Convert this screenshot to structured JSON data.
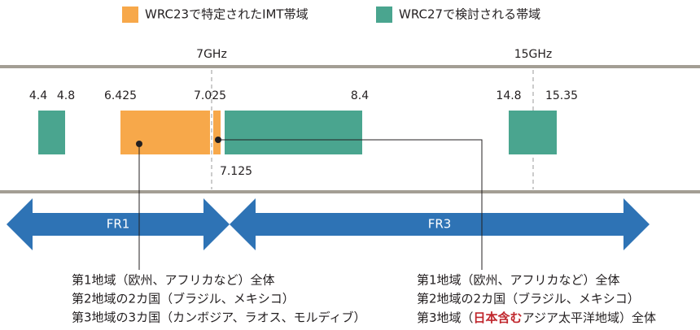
{
  "legend": [
    {
      "label": "WRC23で特定されたIMT帯域",
      "color": "#f7a84a"
    },
    {
      "label": "WRC27で検討される帯域",
      "color": "#4aa58f"
    }
  ],
  "markers": [
    "7GHz",
    "15GHz"
  ],
  "band_labels": [
    "4.4",
    "4.8",
    "6.425",
    "7.025",
    "8.4",
    "14.8",
    "15.35",
    "7.125"
  ],
  "ranges": [
    "FR1",
    "FR3"
  ],
  "left_note": [
    "第1地域（欧州、アフリカなど）全体",
    "第2地域の2カ国（ブラジル、メキシコ）",
    "第3地域の3カ国（カンボジア、ラオス、モルディブ）"
  ],
  "right_note": {
    "lines": [
      "第1地域（欧州、アフリカなど）全体",
      "第2地域の2カ国（ブラジル、メキシコ）"
    ],
    "last": [
      "第3地域（",
      "日本含む",
      "アジア太平洋地域）全体"
    ]
  }
}
